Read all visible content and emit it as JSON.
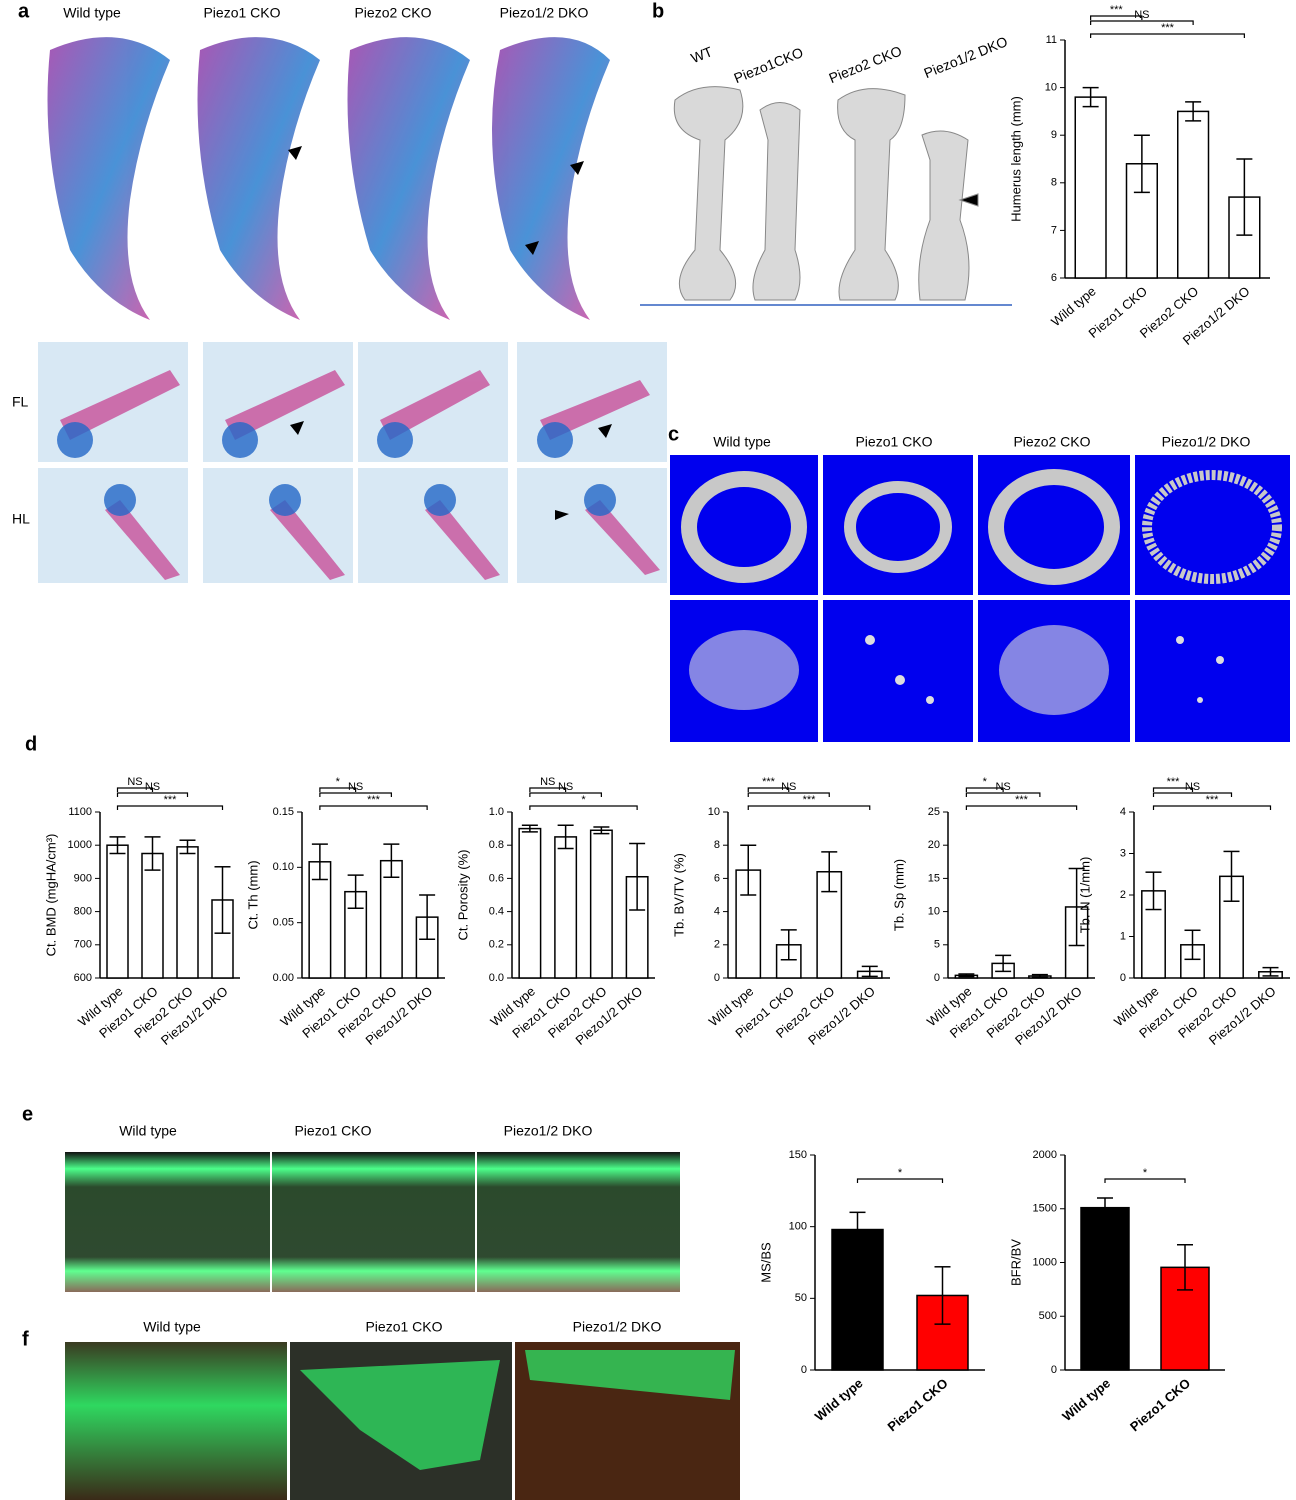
{
  "panels": {
    "a": {
      "label": "a",
      "columns": [
        "Wild type",
        "Piezo1 CKO",
        "Piezo2 CKO",
        "Piezo1/2 DKO"
      ],
      "rows": [
        "FL",
        "HL"
      ]
    },
    "b": {
      "label": "b",
      "columns": [
        "WT",
        "Piezo1CKO",
        "Piezo2 CKO",
        "Piezo1/2 DKO"
      ]
    },
    "c": {
      "label": "c",
      "columns": [
        "Wild type",
        "Piezo1 CKO",
        "Piezo2 CKO",
        "Piezo1/2 DKO"
      ]
    },
    "d": {
      "label": "d"
    },
    "e": {
      "label": "e",
      "columns": [
        "Wild type",
        "Piezo1 CKO",
        "Piezo1/2 DKO"
      ]
    },
    "f": {
      "label": "f",
      "columns": [
        "Wild type",
        "Piezo1 CKO",
        "Piezo1/2 DKO"
      ]
    }
  },
  "chart_data": [
    {
      "type": "bar",
      "ylabel": "Humerus length (mm)",
      "categories": [
        "Wild type",
        "Piezo1 CKO",
        "Piezo2 CKO",
        "Piezo1/2 DKO"
      ],
      "values": [
        9.8,
        8.4,
        9.5,
        7.7
      ],
      "errors": [
        0.2,
        0.6,
        0.2,
        0.8
      ],
      "color": "#ffffff",
      "edgecolor": "#000000",
      "ylim": [
        6,
        11
      ],
      "yticks": [
        6,
        7,
        8,
        9,
        10,
        11
      ],
      "annotations": [
        "***",
        "NS",
        "***"
      ]
    },
    {
      "type": "bar",
      "ylabel": "Ct. BMD (mgHA/cm³)",
      "categories": [
        "Wild type",
        "Piezo1 CKO",
        "Piezo2 CKO",
        "Piezo1/2 DKO"
      ],
      "values": [
        1000,
        975,
        995,
        835
      ],
      "errors": [
        25,
        50,
        20,
        100
      ],
      "color": "#ffffff",
      "edgecolor": "#000000",
      "ylim": [
        600,
        1100
      ],
      "yticks": [
        600,
        700,
        800,
        900,
        1000,
        1100
      ],
      "annotations": [
        "NS",
        "NS",
        "***"
      ]
    },
    {
      "type": "bar",
      "ylabel": "Ct. Th (mm)",
      "categories": [
        "Wild type",
        "Piezo1 CKO",
        "Piezo2 CKO",
        "Piezo1/2 DKO"
      ],
      "values": [
        0.105,
        0.078,
        0.106,
        0.055
      ],
      "errors": [
        0.016,
        0.015,
        0.015,
        0.02
      ],
      "color": "#ffffff",
      "edgecolor": "#000000",
      "ylim": [
        0,
        0.15
      ],
      "yticks": [
        {
          "value": 0,
          "label": "0.00"
        },
        {
          "value": 0.05,
          "label": "0.05"
        },
        {
          "value": 0.1,
          "label": "0.10"
        },
        {
          "value": 0.15,
          "label": "0.15"
        }
      ],
      "annotations": [
        "*",
        "NS",
        "***"
      ]
    },
    {
      "type": "bar",
      "ylabel": "Ct. Porosity (%)",
      "categories": [
        "Wild type",
        "Piezo1 CKO",
        "Piezo2 CKO",
        "Piezo1/2 DKO"
      ],
      "values": [
        0.9,
        0.85,
        0.89,
        0.61
      ],
      "errors": [
        0.02,
        0.07,
        0.02,
        0.2
      ],
      "color": "#ffffff",
      "edgecolor": "#000000",
      "ylim": [
        0,
        1
      ],
      "yticks": [
        {
          "value": 0,
          "label": "0.0"
        },
        0.2,
        0.4,
        0.6,
        0.8,
        {
          "value": 1,
          "label": "1.0"
        }
      ],
      "annotations": [
        "NS",
        "NS",
        "*"
      ]
    },
    {
      "type": "bar",
      "ylabel": "Tb. BV/TV (%)",
      "categories": [
        "Wild type",
        "Piezo1 CKO",
        "Piezo2 CKO",
        "Piezo1/2 DKO"
      ],
      "values": [
        6.5,
        2.0,
        6.4,
        0.4
      ],
      "errors": [
        1.5,
        0.9,
        1.2,
        0.3
      ],
      "color": "#ffffff",
      "edgecolor": "#000000",
      "ylim": [
        0,
        10
      ],
      "yticks": [
        0,
        2,
        4,
        6,
        8,
        10
      ],
      "annotations": [
        "***",
        "NS",
        "***"
      ]
    },
    {
      "type": "bar",
      "ylabel": "Tb. Sp (mm)",
      "categories": [
        "Wild type",
        "Piezo1 CKO",
        "Piezo2 CKO",
        "Piezo1/2 DKO"
      ],
      "values": [
        0.4,
        2.2,
        0.3,
        10.7
      ],
      "errors": [
        0.2,
        1.2,
        0.2,
        5.8
      ],
      "color": "#ffffff",
      "edgecolor": "#000000",
      "ylim": [
        0,
        25
      ],
      "yticks": [
        0,
        5,
        10,
        15,
        20,
        25
      ],
      "annotations": [
        "*",
        "NS",
        "***"
      ]
    },
    {
      "type": "bar",
      "ylabel": "Tb. N (1/mm)",
      "categories": [
        "Wild type",
        "Piezo1 CKO",
        "Piezo2 CKO",
        "Piezo1/2 DKO"
      ],
      "values": [
        2.1,
        0.8,
        2.45,
        0.15
      ],
      "errors": [
        0.45,
        0.35,
        0.6,
        0.1
      ],
      "color": "#ffffff",
      "edgecolor": "#000000",
      "ylim": [
        0,
        4
      ],
      "yticks": [
        0,
        1,
        2,
        3,
        4
      ],
      "annotations": [
        "***",
        "NS",
        "***"
      ]
    },
    {
      "type": "bar",
      "ylabel": "MS/BS",
      "categories": [
        "Wild type",
        "Piezo1 CKO"
      ],
      "values": [
        98,
        52
      ],
      "errors": [
        12,
        20
      ],
      "colors": [
        "#000000",
        "#ff0000"
      ],
      "edgecolor": "#000000",
      "ylim": [
        0,
        150
      ],
      "yticks": [
        0,
        50,
        100,
        150
      ],
      "annotations": [
        "*"
      ]
    },
    {
      "type": "bar",
      "ylabel": "BFR/BV",
      "categories": [
        "Wild type",
        "Piezo1 CKO"
      ],
      "values": [
        1510,
        955
      ],
      "errors": [
        90,
        210
      ],
      "colors": [
        "#000000",
        "#ff0000"
      ],
      "edgecolor": "#000000",
      "ylim": [
        0,
        2000
      ],
      "yticks": [
        0,
        500,
        1000,
        1500,
        2000
      ],
      "annotations": [
        "*"
      ]
    }
  ]
}
